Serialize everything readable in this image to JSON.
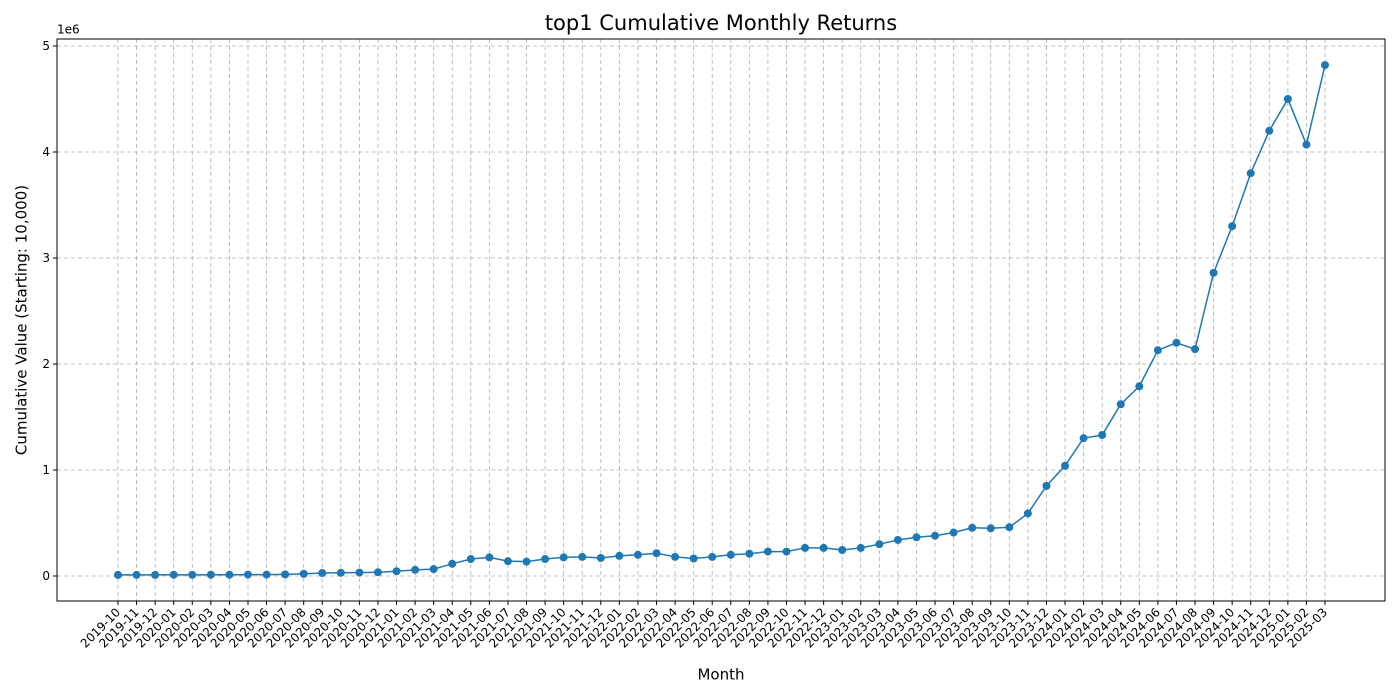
{
  "chart_data": {
    "type": "line",
    "title": "top1 Cumulative Monthly Returns",
    "x_label": "Month",
    "y_label": "Cumulative Value (Starting: 10,000)",
    "y_offset_label": "1e6",
    "categories": [
      "2019-10",
      "2019-11",
      "2019-12",
      "2020-01",
      "2020-02",
      "2020-03",
      "2020-04",
      "2020-05",
      "2020-06",
      "2020-07",
      "2020-08",
      "2020-09",
      "2020-10",
      "2020-11",
      "2020-12",
      "2021-01",
      "2021-02",
      "2021-03",
      "2021-04",
      "2021-05",
      "2021-06",
      "2021-07",
      "2021-08",
      "2021-09",
      "2021-10",
      "2021-11",
      "2021-12",
      "2022-01",
      "2022-02",
      "2022-03",
      "2022-04",
      "2022-05",
      "2022-06",
      "2022-07",
      "2022-08",
      "2022-09",
      "2022-10",
      "2022-11",
      "2022-12",
      "2023-01",
      "2023-02",
      "2023-03",
      "2023-04",
      "2023-05",
      "2023-06",
      "2023-07",
      "2023-08",
      "2023-09",
      "2023-10",
      "2023-11",
      "2023-12",
      "2024-01",
      "2024-02",
      "2024-03",
      "2024-04",
      "2024-05",
      "2024-06",
      "2024-07",
      "2024-08",
      "2024-09",
      "2024-10",
      "2024-11",
      "2024-12",
      "2025-01",
      "2025-02",
      "2025-03"
    ],
    "series": [
      {
        "name": "top1",
        "color": "#1f77b4",
        "values": [
          10000,
          10000,
          10000,
          12000,
          11000,
          12000,
          12000,
          13000,
          13000,
          15000,
          20000,
          28000,
          30000,
          32000,
          35000,
          45000,
          58000,
          65000,
          115000,
          160000,
          175000,
          140000,
          135000,
          160000,
          175000,
          180000,
          170000,
          190000,
          200000,
          215000,
          180000,
          165000,
          180000,
          200000,
          210000,
          230000,
          230000,
          265000,
          265000,
          245000,
          265000,
          300000,
          340000,
          365000,
          380000,
          410000,
          455000,
          450000,
          460000,
          590000,
          850000,
          1040000,
          1300000,
          1330000,
          1620000,
          1790000,
          2130000,
          2200000,
          2140000,
          2860000,
          3300000,
          3800000,
          4200000,
          4500000,
          4070000,
          4820000
        ]
      }
    ],
    "ylim": [
      -236000,
      5066000
    ],
    "yticks": [
      {
        "value": 0,
        "label": "0"
      },
      {
        "value": 1000000,
        "label": "1"
      },
      {
        "value": 2000000,
        "label": "2"
      },
      {
        "value": 3000000,
        "label": "3"
      },
      {
        "value": 4000000,
        "label": "4"
      },
      {
        "value": 5000000,
        "label": "5"
      }
    ],
    "grid": true
  }
}
